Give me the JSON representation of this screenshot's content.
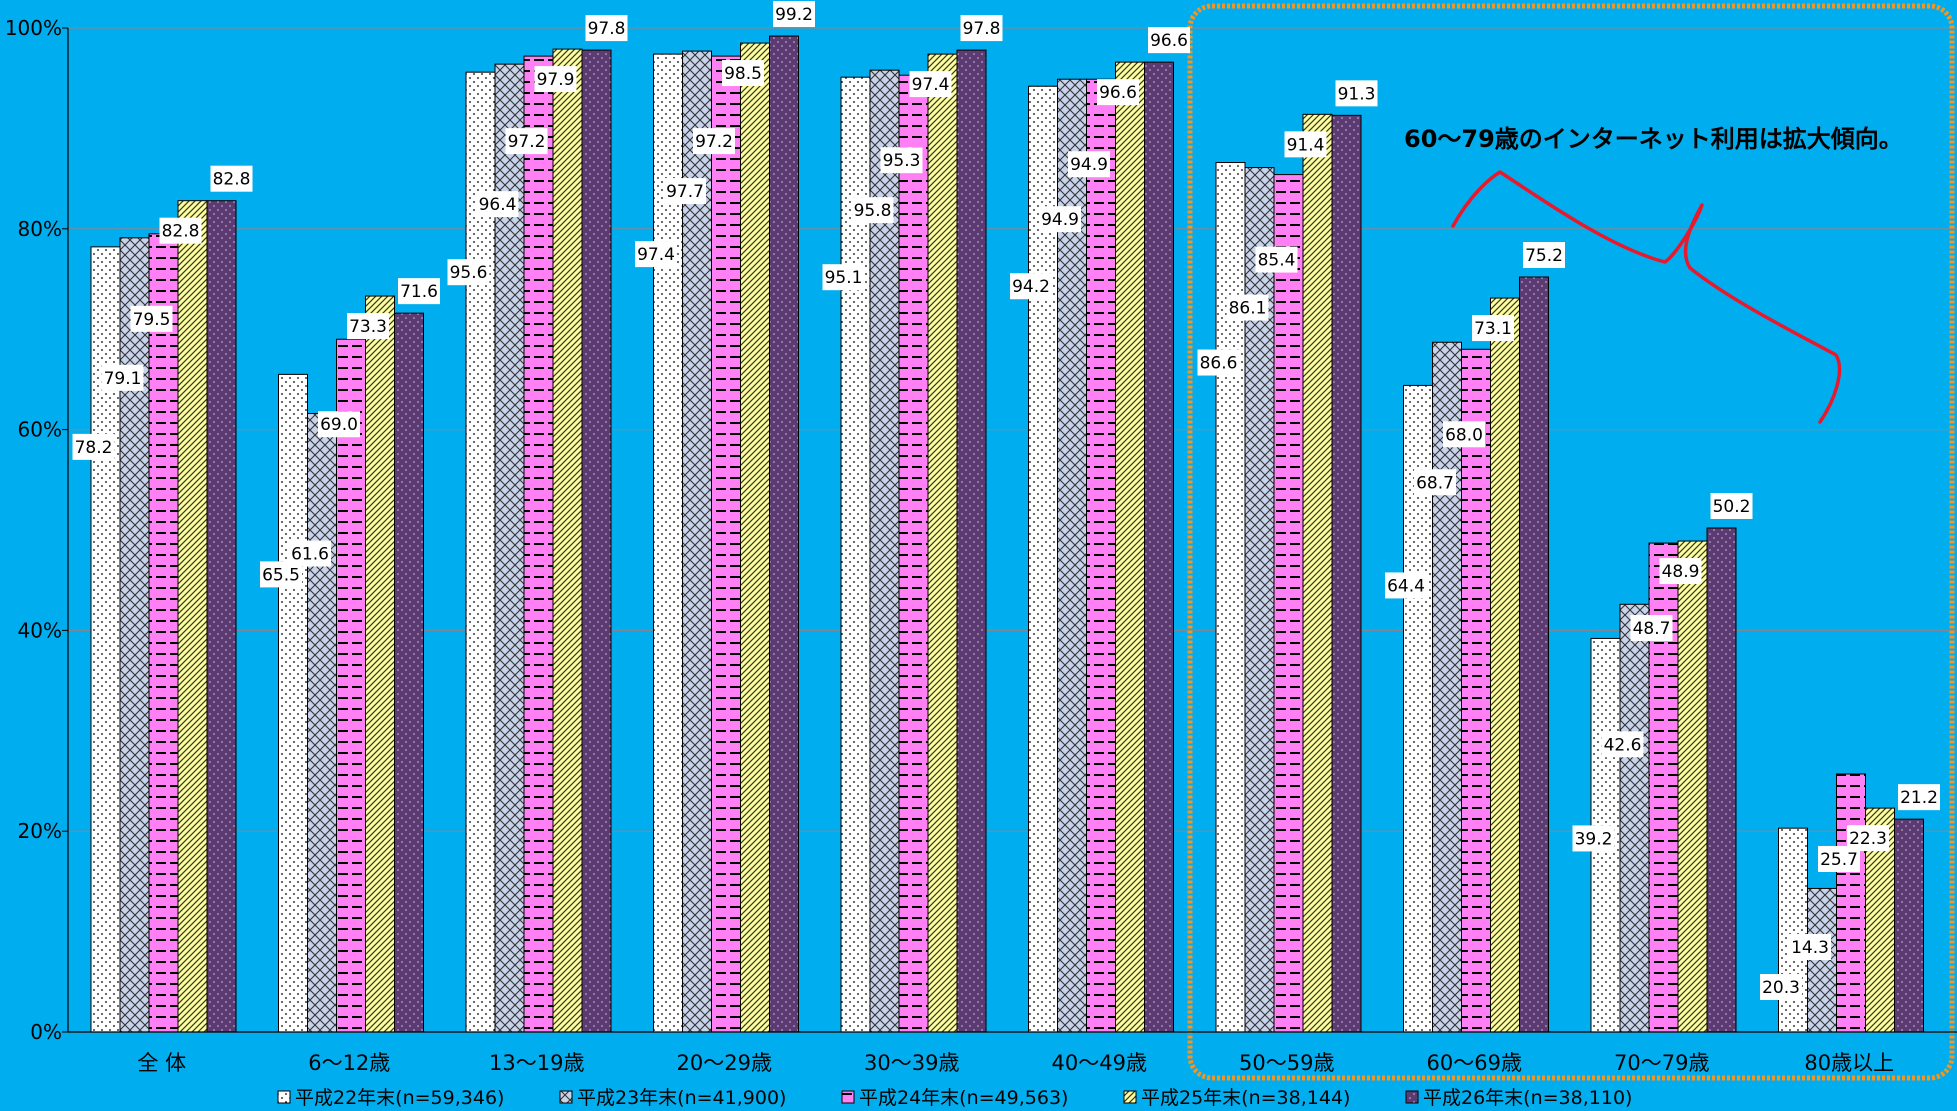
{
  "chart_data": {
    "type": "bar",
    "categories": [
      "全 体",
      "6～12歳",
      "13～19歳",
      "20～29歳",
      "30～39歳",
      "40～49歳",
      "50～59歳",
      "60～69歳",
      "70～79歳",
      "80歳以上"
    ],
    "series": [
      {
        "name": "平成22年末(n=59,346)",
        "values": [
          78.2,
          65.5,
          95.6,
          97.4,
          95.1,
          94.2,
          86.6,
          64.4,
          39.2,
          20.3
        ]
      },
      {
        "name": "平成23年末(n=41,900)",
        "values": [
          79.1,
          61.6,
          96.4,
          97.7,
          95.8,
          94.9,
          86.1,
          68.7,
          42.6,
          14.3
        ]
      },
      {
        "name": "平成24年末(n=49,563)",
        "values": [
          79.5,
          69.0,
          97.2,
          97.2,
          95.3,
          94.9,
          85.4,
          68.0,
          48.7,
          25.7
        ]
      },
      {
        "name": "平成25年末(n=38,144)",
        "values": [
          82.8,
          73.3,
          97.9,
          98.5,
          97.4,
          96.6,
          91.4,
          73.1,
          48.9,
          22.3
        ]
      },
      {
        "name": "平成26年末(n=38,110)",
        "values": [
          82.8,
          71.6,
          97.8,
          99.2,
          97.8,
          96.6,
          91.3,
          75.2,
          50.2,
          21.2
        ]
      }
    ],
    "ylim": [
      0,
      100
    ],
    "yticks": [
      "0%",
      "20%",
      "40%",
      "60%",
      "80%",
      "100%"
    ],
    "ytick_values": [
      0,
      20,
      40,
      60,
      80,
      100
    ],
    "grid": true,
    "legend_position": "bottom",
    "annotation": "60～79歳のインターネット利用は拡大傾向。",
    "highlight_categories": [
      "50～59歳",
      "60～69歳",
      "70～79歳",
      "80歳以上"
    ],
    "colors": {
      "background": "#00aeef",
      "highlight_border": "#f7941d",
      "annotation_line": "#e8192c",
      "series": [
        "#ffffff",
        "#c8d4ec",
        "#ff7ff5",
        "#ffff99",
        "#5c3a72"
      ]
    }
  }
}
